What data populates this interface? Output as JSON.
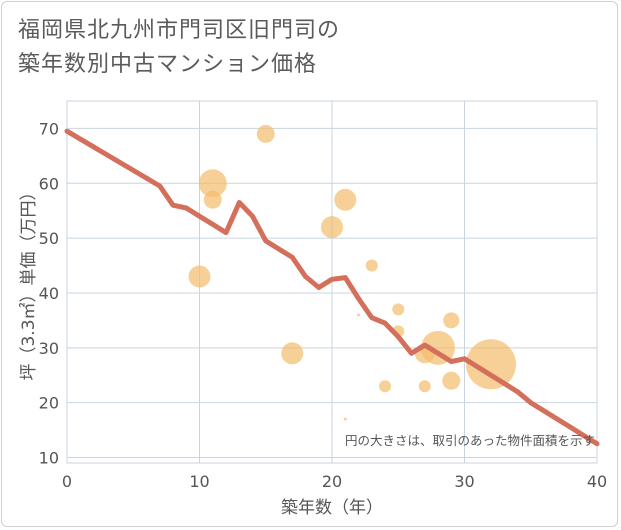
{
  "title_lines": [
    "福岡県北九州市門司区旧門司の",
    "築年数別中古マンション価格"
  ],
  "note": "円の大きさは、取引のあった物件面積を示す",
  "colors": {
    "line": "#d36f5b",
    "bubble": "#f2be6e",
    "grid": "#c8d4e0",
    "plot_bg": "#ffffff"
  },
  "chart_data": {
    "type": "scatter",
    "xlabel": "築年数（年）",
    "ylabel": "坪（3.3㎡）単価（万円）",
    "xlim": [
      0,
      40
    ],
    "ylim": [
      9,
      75
    ],
    "x_ticks": [
      0,
      10,
      20,
      30,
      40
    ],
    "y_ticks": [
      10,
      20,
      30,
      40,
      50,
      60,
      70
    ],
    "grid": true,
    "trend_line": {
      "x": [
        0,
        7,
        8,
        9,
        10,
        11,
        12,
        13,
        14,
        15,
        16,
        17,
        18,
        19,
        20,
        21,
        22,
        23,
        24,
        25,
        26,
        27,
        28,
        29,
        30,
        31,
        32,
        33,
        34,
        35,
        36,
        37,
        38,
        39,
        40
      ],
      "y": [
        69.5,
        59.5,
        56,
        55.5,
        54,
        52.5,
        51,
        56.5,
        54,
        49.5,
        48,
        46.5,
        43,
        41,
        42.5,
        42.8,
        39,
        35.5,
        34.5,
        32,
        29,
        30.5,
        29,
        27.5,
        28,
        26.5,
        25,
        23.5,
        22,
        20,
        18.5,
        17,
        15.5,
        14,
        12.5
      ]
    },
    "bubbles": [
      {
        "x": 15,
        "y": 69,
        "size": 9
      },
      {
        "x": 11,
        "y": 60,
        "size": 14
      },
      {
        "x": 11,
        "y": 57,
        "size": 9
      },
      {
        "x": 21,
        "y": 57,
        "size": 11
      },
      {
        "x": 20,
        "y": 52,
        "size": 11
      },
      {
        "x": 10,
        "y": 43,
        "size": 11
      },
      {
        "x": 23,
        "y": 45,
        "size": 6
      },
      {
        "x": 25,
        "y": 37,
        "size": 6
      },
      {
        "x": 22,
        "y": 36,
        "size": 1.5
      },
      {
        "x": 17,
        "y": 29,
        "size": 11
      },
      {
        "x": 25,
        "y": 33,
        "size": 6
      },
      {
        "x": 27,
        "y": 29,
        "size": 10
      },
      {
        "x": 28,
        "y": 30,
        "size": 17
      },
      {
        "x": 29,
        "y": 35,
        "size": 8
      },
      {
        "x": 32,
        "y": 27,
        "size": 25
      },
      {
        "x": 29,
        "y": 24,
        "size": 9
      },
      {
        "x": 27,
        "y": 23,
        "size": 6
      },
      {
        "x": 24,
        "y": 23,
        "size": 6
      },
      {
        "x": 21,
        "y": 17,
        "size": 1.5
      }
    ]
  }
}
